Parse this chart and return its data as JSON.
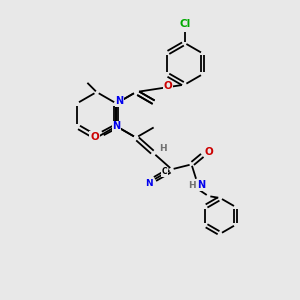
{
  "bg_color": "#e8e8e8",
  "atom_colors": {
    "C": "#000000",
    "N": "#0000ee",
    "O": "#cc0000",
    "Cl": "#00aa00",
    "H": "#707070"
  },
  "bond_lw": 1.3,
  "font_size": 7.0,
  "fig_size": [
    3.0,
    3.0
  ],
  "dpi": 100
}
